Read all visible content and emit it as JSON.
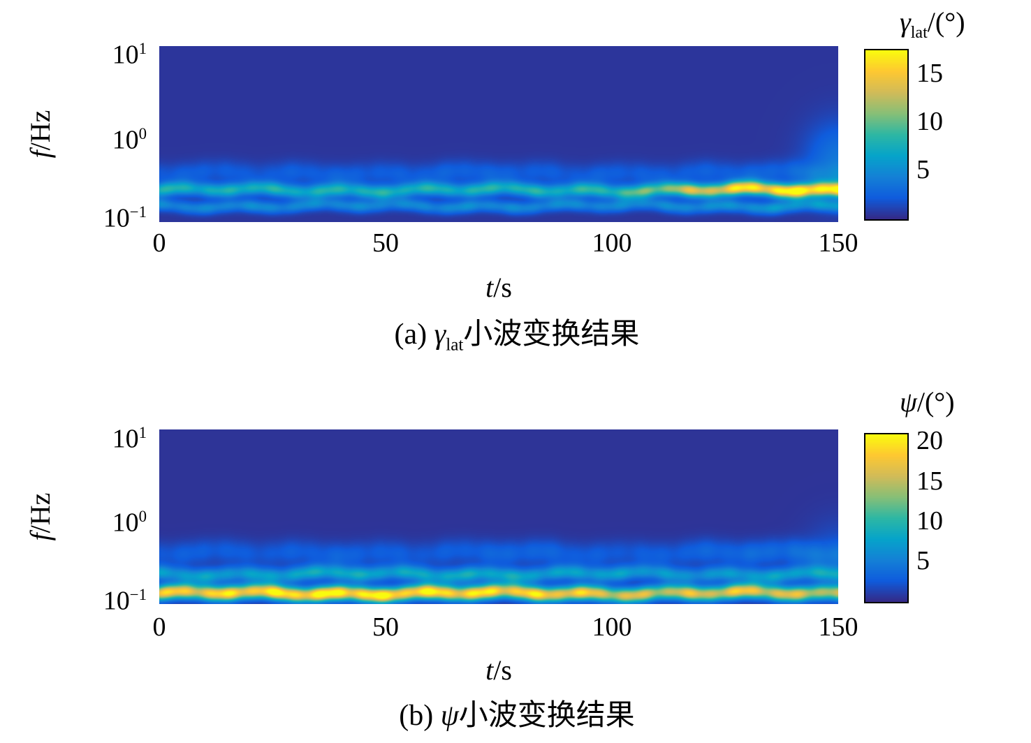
{
  "figure": {
    "background_color": "#ffffff",
    "colormap": {
      "name": "parula",
      "stops": [
        "#352a87",
        "#0f5cdd",
        "#1481d6",
        "#06a4ca",
        "#2eb7a4",
        "#87bf77",
        "#d1bb59",
        "#fec832",
        "#f9fb0e"
      ]
    }
  },
  "chart_data": [
    {
      "type": "heatmap",
      "panel": "a",
      "caption": {
        "prefix": "(a) ",
        "symbol": "γ",
        "symbol_sub": "lat",
        "text": "小波变换结果"
      },
      "xlabel": {
        "var": "t",
        "unit": "/s"
      },
      "ylabel": {
        "var": "f",
        "unit": "/Hz"
      },
      "x_range_s": [
        0,
        150
      ],
      "x_ticks": [
        "0",
        "50",
        "100",
        "150"
      ],
      "y_scale": "log",
      "y_range_log10_hz": [
        -1,
        1
      ],
      "y_ticks": [
        {
          "base": "10",
          "exp": "1"
        },
        {
          "base": "10",
          "exp": "0"
        },
        {
          "base": "10",
          "exp": "−1"
        }
      ],
      "colorbar": {
        "title": {
          "symbol": "γ",
          "symbol_sub": "lat",
          "suffix": "/(°)"
        },
        "ticks": [
          "15",
          "10",
          "5"
        ],
        "tick_values": [
          15,
          10,
          5
        ],
        "vmin": 0,
        "vmax": 17.5
      },
      "background_level_deg": 0.5,
      "t_samples_s": [
        0,
        10,
        20,
        30,
        40,
        50,
        60,
        70,
        80,
        90,
        100,
        110,
        120,
        130,
        140,
        150
      ],
      "bands": [
        {
          "name": "primary-ridge",
          "center_log10f": -0.64,
          "sigma_log10f": 0.055,
          "amplitude_deg": [
            7.0,
            6.6,
            7.2,
            6.8,
            7.0,
            7.3,
            6.9,
            7.1,
            7.4,
            7.0,
            8.0,
            10.0,
            13.0,
            15.5,
            17.0,
            16.0
          ]
        },
        {
          "name": "secondary-ridge",
          "center_log10f": -0.82,
          "sigma_log10f": 0.05,
          "amplitude_deg": [
            4.2,
            4.0,
            4.4,
            4.1,
            4.3,
            4.0,
            4.2,
            4.5,
            4.1,
            4.3,
            4.0,
            4.2,
            4.4,
            4.8,
            5.2,
            4.6
          ]
        },
        {
          "name": "upper-wisps",
          "center_log10f": -0.45,
          "sigma_log10f": 0.09,
          "amplitude_deg": [
            1.6,
            1.9,
            1.5,
            1.8,
            2.0,
            1.7,
            1.9,
            2.1,
            1.8,
            1.6,
            1.9,
            1.7,
            1.8,
            2.0,
            2.2,
            2.0
          ]
        }
      ],
      "edge_glow": {
        "t_center_s": 150,
        "t_sigma_s": 5,
        "center_log10f": -0.3,
        "sigma_log10f": 0.3,
        "amplitude_deg": 3.2
      }
    },
    {
      "type": "heatmap",
      "panel": "b",
      "caption": {
        "prefix": "(b) ",
        "symbol": "ψ",
        "symbol_sub": "",
        "text": "小波变换结果"
      },
      "xlabel": {
        "var": "t",
        "unit": "/s"
      },
      "ylabel": {
        "var": "f",
        "unit": "/Hz"
      },
      "x_range_s": [
        0,
        150
      ],
      "x_ticks": [
        "0",
        "50",
        "100",
        "150"
      ],
      "y_scale": "log",
      "y_range_log10_hz": [
        -1,
        1
      ],
      "y_ticks": [
        {
          "base": "10",
          "exp": "1"
        },
        {
          "base": "10",
          "exp": "0"
        },
        {
          "base": "10",
          "exp": "−1"
        }
      ],
      "colorbar": {
        "title": {
          "symbol": "ψ",
          "symbol_sub": "",
          "suffix": "/(°)"
        },
        "ticks": [
          "20",
          "15",
          "10",
          "5"
        ],
        "tick_values": [
          20,
          15,
          10,
          5
        ],
        "vmin": 0,
        "vmax": 21
      },
      "background_level_deg": 0.5,
      "t_samples_s": [
        0,
        10,
        20,
        30,
        40,
        50,
        60,
        70,
        80,
        90,
        100,
        110,
        120,
        130,
        140,
        150
      ],
      "bands": [
        {
          "name": "primary-ridge",
          "center_log10f": -0.88,
          "sigma_log10f": 0.06,
          "amplitude_deg": [
            17,
            18,
            19,
            20,
            20.5,
            20,
            19.5,
            19,
            18.5,
            18,
            16,
            15,
            16,
            17,
            15.5,
            14
          ]
        },
        {
          "name": "secondary-ridge",
          "center_log10f": -0.66,
          "sigma_log10f": 0.06,
          "amplitude_deg": [
            6.5,
            7,
            6.5,
            7.5,
            8,
            7.2,
            7.6,
            8,
            7.4,
            6.8,
            7,
            6.2,
            5.8,
            6.6,
            7.2,
            6.4
          ]
        },
        {
          "name": "upper-wisps",
          "center_log10f": -0.42,
          "sigma_log10f": 0.1,
          "amplitude_deg": [
            2,
            2.4,
            2,
            2.2,
            2.6,
            2.2,
            2,
            2.5,
            2.8,
            2.4,
            2,
            2.2,
            2.6,
            3,
            3.2,
            2.6
          ]
        }
      ],
      "edge_glow": {
        "t_center_s": 150,
        "t_sigma_s": 5,
        "center_log10f": -0.45,
        "sigma_log10f": 0.28,
        "amplitude_deg": 1.8
      }
    }
  ]
}
